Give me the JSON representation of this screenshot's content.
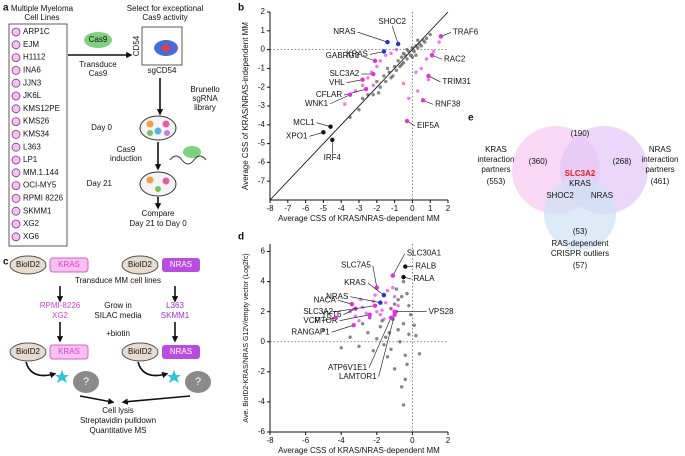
{
  "panel_labels": [
    "a",
    "b",
    "c",
    "d",
    "e"
  ],
  "panel_a": {
    "heading": [
      "Multiple Myeloma",
      "Cell Lines"
    ],
    "cell_lines": [
      "ARP1C",
      "EJM",
      "H1112",
      "INA6",
      "JJN3",
      "JK6L",
      "KMS12PE",
      "KMS26",
      "KMS34",
      "L363",
      "LP1",
      "MM.1.144",
      "OCI-MY5",
      "RPMI 8226",
      "SKMM1",
      "XG2",
      "XG6"
    ],
    "cas9": "Cas9",
    "transduce": [
      "Transduce",
      "Cas9"
    ],
    "select": [
      "Select for exceptional",
      "Cas9 activity"
    ],
    "facs_y": "CD54",
    "facs_x": "sgCD54",
    "library": [
      "Brunello",
      "sgRNA",
      "library"
    ],
    "day0": "Day 0",
    "induction": [
      "Cas9",
      "induction"
    ],
    "day21": "Day 21",
    "compare": [
      "Compare",
      "Day 21 to Day 0"
    ]
  },
  "chart_data": [
    {
      "type": "scatter",
      "x_label": "Average CSS of KRAS/NRAS-dependent MM",
      "y_label": "Average CSS of KRAS/NRAS-independent MM",
      "xlim": [
        -8,
        2
      ],
      "ylim": [
        -8,
        2
      ],
      "xticks": [
        -8,
        -7,
        -6,
        -5,
        -4,
        -3,
        -2,
        -1,
        0,
        1,
        2
      ],
      "yticks": [
        -7,
        -6,
        -5,
        -4,
        -3,
        -2,
        -1,
        0,
        1,
        2
      ],
      "identity_line": true,
      "series": [
        {
          "color": "#444444",
          "x": [
            -3,
            -2.5,
            -2.2,
            -2,
            -1.8,
            -1.6,
            -1.5,
            -1.3,
            -1.2,
            -1,
            -0.9,
            -0.8,
            -0.7,
            -0.6,
            -0.5,
            -0.4,
            -0.3,
            -0.2,
            -0.1,
            0,
            0.1,
            0.2,
            0.3,
            0.4,
            0.5,
            0.6,
            0.8,
            1,
            -1.1,
            -0.5,
            0,
            0.3,
            -2.8,
            -1.9,
            -0.6,
            0.2,
            -0.3,
            -1.4,
            0.7,
            -3.5
          ],
          "values": [
            -3.2,
            -2.4,
            -2.4,
            -1.7,
            -2,
            -1.4,
            -1.7,
            -1.2,
            -1.5,
            -0.9,
            -1.1,
            -0.6,
            -0.9,
            -0.4,
            -0.7,
            -0.3,
            -0.5,
            -0.1,
            -0.3,
            0.1,
            -0.1,
            0.2,
            0.1,
            0.3,
            0.2,
            0.5,
            0.6,
            0.8,
            -1.4,
            -0.2,
            -0.4,
            0.5,
            -2.6,
            -2.3,
            -0.8,
            -0.3,
            0,
            -1.0,
            0.4,
            -3.6
          ]
        },
        {
          "color": "#e030e0",
          "x": [
            -3.2,
            -2.8,
            -2.5,
            -2.3,
            -2,
            -1.8,
            -1.5,
            -1.2,
            -0.9,
            -0.5,
            0.2,
            0.5,
            0.8,
            1.2,
            -3.8,
            -2.2,
            0.3,
            -0.2,
            1.5,
            0.9
          ],
          "values": [
            -2.2,
            -1.9,
            -1.5,
            -1.2,
            -0.9,
            -0.6,
            -0.3,
            -0.2,
            0,
            -1.8,
            -1.2,
            -1.0,
            -0.5,
            -0.1,
            -2.9,
            -1.9,
            -2.2,
            -2.6,
            0.4,
            -1.6
          ]
        }
      ],
      "labeled_points": [
        {
          "label": "NRAS",
          "x": -1.4,
          "y": 0.4,
          "color": "#2233cc"
        },
        {
          "label": "KRAS",
          "x": -1.6,
          "y": -0.1,
          "color": "#2233cc"
        },
        {
          "label": "SHOC2",
          "x": -0.8,
          "y": 0.3,
          "color": "#2233cc"
        },
        {
          "label": "TRAF6",
          "x": 1.6,
          "y": 0.7,
          "color": "#e030e0"
        },
        {
          "label": "RAC2",
          "x": 1.1,
          "y": -0.3,
          "color": "#e030e0"
        },
        {
          "label": "TRIM31",
          "x": 0.9,
          "y": -1.4,
          "color": "#e030e0"
        },
        {
          "label": "GABRG3",
          "x": -2.1,
          "y": -0.6,
          "color": "#e030e0"
        },
        {
          "label": "SLC3A2",
          "x": -2.2,
          "y": -1.3,
          "color": "#e030e0"
        },
        {
          "label": "VHL",
          "x": -2.8,
          "y": -1.6,
          "color": "#e030e0"
        },
        {
          "label": "CFLAR",
          "x": -2.6,
          "y": -2.1,
          "color": "#e030e0"
        },
        {
          "label": "WNK1",
          "x": -3.5,
          "y": -2.4,
          "color": "#e030e0"
        },
        {
          "label": "RNF38",
          "x": 0.6,
          "y": -2.7,
          "color": "#e030e0"
        },
        {
          "label": "EIF5A",
          "x": -0.3,
          "y": -3.8,
          "color": "#e030e0"
        },
        {
          "label": "MCL1",
          "x": -4.6,
          "y": -4.1,
          "color": "#111111"
        },
        {
          "label": "XPO1",
          "x": -5,
          "y": -4.4,
          "color": "#111111"
        },
        {
          "label": "IRF4",
          "x": -4.5,
          "y": -4.8,
          "color": "#111111"
        }
      ]
    },
    {
      "type": "scatter",
      "x_label": "Average CSS of KRAS/NRAS-dependent MM",
      "y_label": "Ave. BioID2-KRAS/NRAS G12V/empty vector (Log2fc)",
      "xlim": [
        -8,
        2
      ],
      "ylim": [
        -6,
        6.5
      ],
      "xticks": [
        -8,
        -6,
        -4,
        -2,
        0,
        2
      ],
      "yticks": [
        -6,
        -4,
        -2,
        0,
        2,
        4,
        6
      ],
      "identity_line": false,
      "series": [
        {
          "color": "#444444",
          "x": [
            -0.2,
            -0.5,
            -0.8,
            -1,
            -1.2,
            -1.5,
            -1.8,
            -2,
            -2.5,
            -3,
            -0.3,
            -0.6,
            -0.9,
            -1.1,
            -0.4,
            -0.7,
            -0.1,
            0.2,
            0.4,
            -1.4,
            -2.2,
            -2.8,
            -3.5,
            -4,
            -0.5,
            -0.9,
            -1.3,
            -0.2,
            -0.6,
            -1.7,
            0.1,
            -0.4,
            -1,
            -2.4,
            -0.8,
            -1.6,
            -0.3,
            -1.2,
            -0.5,
            -5
          ],
          "values": [
            0.5,
            1.2,
            0.8,
            2.5,
            -0.5,
            0.3,
            1,
            0.2,
            0.6,
            -0.3,
            -1.5,
            3,
            2,
            1.5,
            -2.5,
            0,
            1.8,
            0.4,
            -0.8,
            -1,
            -0.6,
            1.2,
            0.3,
            -0.4,
            4,
            3.5,
            0.6,
            2.4,
            -3,
            1.4,
            1.1,
            -0.9,
            -1.8,
            1.6,
            2.8,
            -0.2,
            3.2,
            2.2,
            -4.2,
            0.8
          ]
        },
        {
          "color": "#e030e0",
          "x": [
            -1.2,
            -1.5,
            -2,
            -2.4,
            -2.8,
            -3,
            -1,
            -1.8,
            -2.2,
            -0.8,
            -3.5,
            -1.4,
            -2.6,
            -1.1,
            -2.9,
            -1.7,
            -0.9,
            -3.2,
            -2.1,
            -1.6
          ],
          "values": [
            2.2,
            2.6,
            2.0,
            1.6,
            2.3,
            1.4,
            3.0,
            1.8,
            2.7,
            2.4,
            2.0,
            3.4,
            1.9,
            3.6,
            2.8,
            2.1,
            2.0,
            1.7,
            3.1,
            1.5
          ]
        }
      ],
      "labeled_points": [
        {
          "label": "SLC30A1",
          "x": -1.1,
          "y": 4.4,
          "color": "#e030e0"
        },
        {
          "label": "RALB",
          "x": -0.4,
          "y": 5.0,
          "color": "#111111"
        },
        {
          "label": "RALA",
          "x": -0.5,
          "y": 4.3,
          "color": "#111111"
        },
        {
          "label": "SLC7A5",
          "x": -2.0,
          "y": 3.6,
          "color": "#e030e0"
        },
        {
          "label": "KRAS",
          "x": -1.6,
          "y": 3.1,
          "color": "#2233cc"
        },
        {
          "label": "NRAS",
          "x": -1.8,
          "y": 2.6,
          "color": "#2233cc"
        },
        {
          "label": "NACA",
          "x": -3.4,
          "y": 2.5,
          "color": "#e030e0"
        },
        {
          "label": "YKT6",
          "x": -3.2,
          "y": 2.2,
          "color": "#e030e0"
        },
        {
          "label": "SLC3A2",
          "x": -2.1,
          "y": 2.4,
          "color": "#e030e0"
        },
        {
          "label": "VPS28",
          "x": -1.0,
          "y": 2.0,
          "color": "#e030e0"
        },
        {
          "label": "MTOR",
          "x": -2.4,
          "y": 1.8,
          "color": "#e030e0"
        },
        {
          "label": "VCP",
          "x": -4.3,
          "y": 1.6,
          "color": "#e030e0"
        },
        {
          "label": "RANGAP1",
          "x": -3.3,
          "y": 1.1,
          "color": "#e030e0"
        },
        {
          "label": "ATP6V1E1",
          "x": -1.2,
          "y": 1.6,
          "color": "#e030e0"
        },
        {
          "label": "LAMTOR1",
          "x": -1.0,
          "y": 1.8,
          "color": "#e030e0"
        }
      ]
    }
  ],
  "panel_c": {
    "bioid": "BioID2",
    "kras": "KRAS",
    "nras": "NRAS",
    "transduce": "Transduce MM cell lines",
    "kras_lines": [
      "RPMI-8226",
      "XG2"
    ],
    "grow": [
      "Grow in",
      "SILAC media"
    ],
    "nras_lines": [
      "L363",
      "SKMM1"
    ],
    "biotin": "+biotin",
    "unknown": "?",
    "steps": [
      "Cell lysis",
      "Streptavidin pulldown",
      "Quantitative MS"
    ]
  },
  "panel_e": {
    "kras_set": [
      "KRAS",
      "interaction",
      "partners",
      "(553)"
    ],
    "nras_set": [
      "NRAS",
      "interaction",
      "partners",
      "(461)"
    ],
    "crispr_set": [
      "RAS-dependent",
      "CRISPR outliers",
      "(57)"
    ],
    "kras_only": "(360)",
    "kras_nras": "(190)",
    "nras_only": "(268)",
    "crispr_only": "(53)",
    "shared": [
      "SLC3A2",
      "KRAS"
    ],
    "shoc2": "SHOC2",
    "nras": "NRAS"
  }
}
